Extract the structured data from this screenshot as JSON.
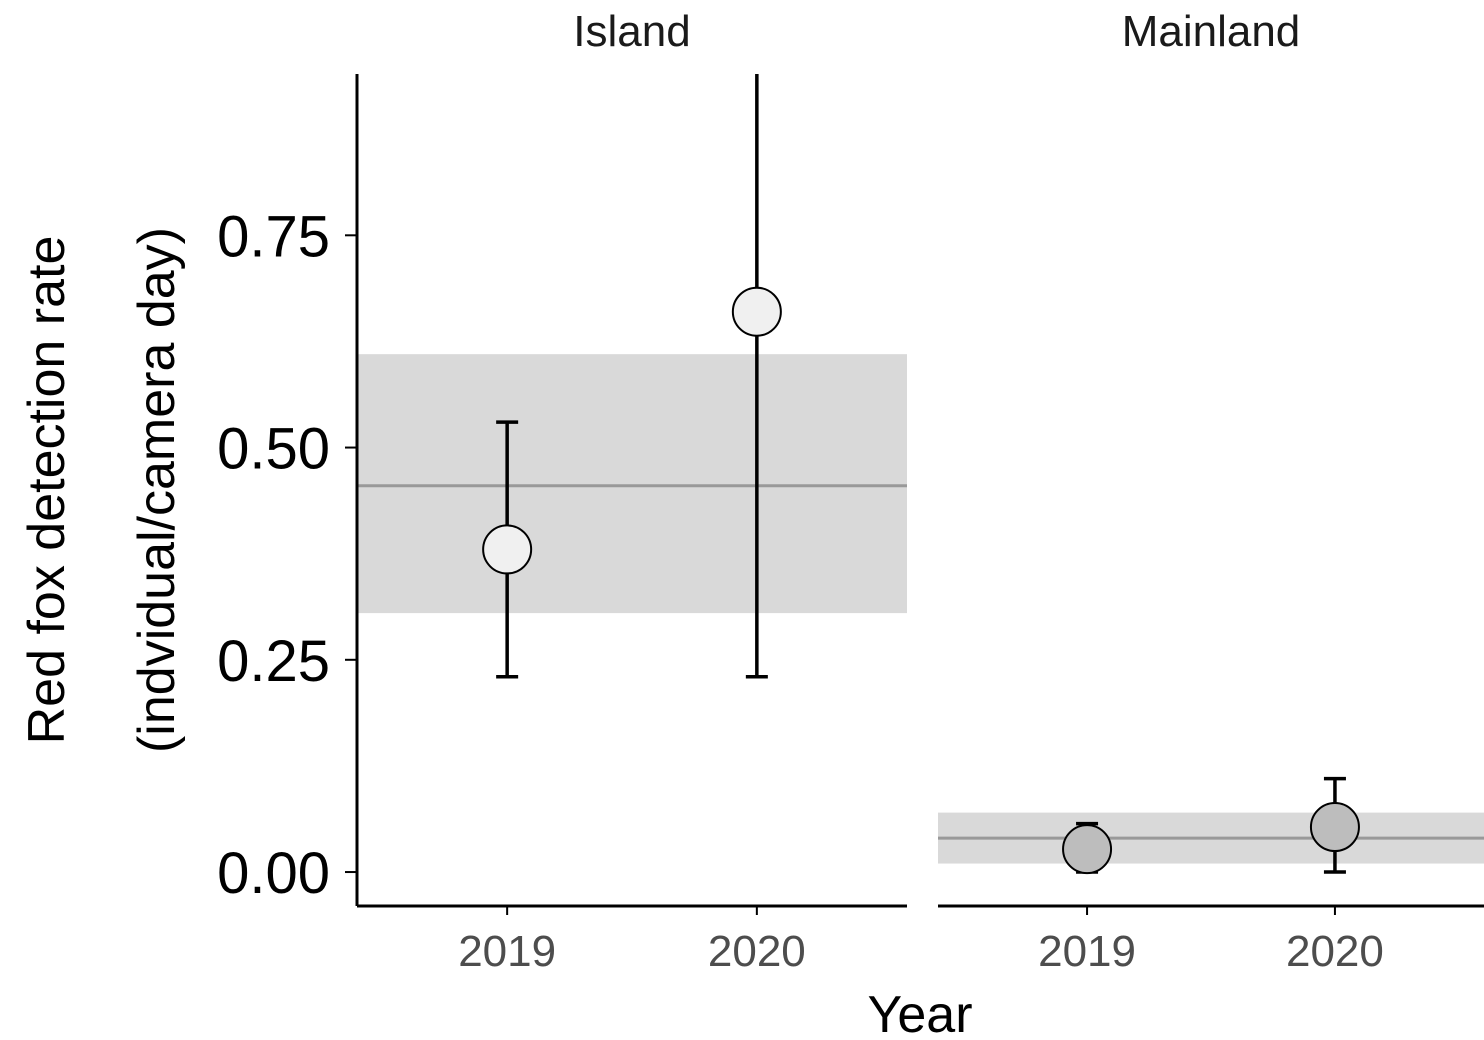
{
  "chart_data": {
    "type": "scatter",
    "xlabel": "Year",
    "ylabel": [
      "Red fox detection rate",
      "(indvidual/camera day)"
    ],
    "ylim": [
      -0.04,
      0.94
    ],
    "yticks": [
      0.0,
      0.25,
      0.5,
      0.75
    ],
    "ytick_labels": [
      "0.00",
      "0.25",
      "0.50",
      "0.75"
    ],
    "categories": [
      "2019",
      "2020"
    ],
    "grid": false,
    "colors": {
      "ribbon": "#d9d9d9",
      "mean_line": "#999999",
      "axis": "#000000"
    },
    "panels": [
      {
        "name": "Island",
        "mean": 0.455,
        "band": [
          0.305,
          0.61
        ],
        "point_fill": "#f0f0f0",
        "points": [
          {
            "x": "2019",
            "y": 0.38,
            "lower": 0.23,
            "upper": 0.53
          },
          {
            "x": "2020",
            "y": 0.66,
            "lower": 0.23,
            "upper": 0.94
          }
        ]
      },
      {
        "name": "Mainland",
        "mean": 0.04,
        "band": [
          0.01,
          0.07
        ],
        "point_fill": "#bdbdbd",
        "points": [
          {
            "x": "2019",
            "y": 0.027,
            "lower": 0.0,
            "upper": 0.057
          },
          {
            "x": "2020",
            "y": 0.053,
            "lower": 0.0,
            "upper": 0.11
          }
        ]
      }
    ]
  }
}
